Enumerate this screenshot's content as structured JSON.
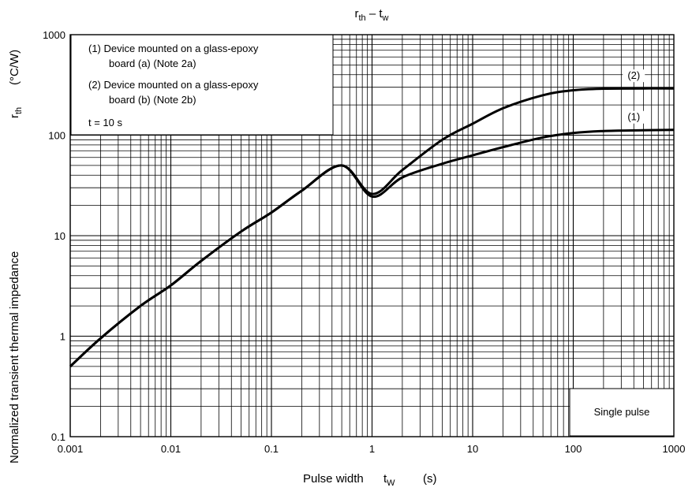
{
  "chart_data": {
    "type": "line",
    "title": {
      "base": "r",
      "base_sub": "th",
      "dash": " – ",
      "base2": "t",
      "base2_sub": "w"
    },
    "xlabel": {
      "prefix": "Pulse width",
      "symbol": "t",
      "symbol_sub": "W",
      "unit": "(s)"
    },
    "ylabel": {
      "prefix": "Normalized transient thermal impedance",
      "symbol": "r",
      "symbol_sub": "th",
      "unit": "(°C/W)"
    },
    "x_scale": "log",
    "y_scale": "log",
    "xlim": [
      0.001,
      1000
    ],
    "ylim": [
      0.1,
      1000
    ],
    "x_ticks": [
      "0.001",
      "0.01",
      "0.1",
      "1",
      "10",
      "100",
      "1000"
    ],
    "y_ticks": [
      "0.1",
      "1",
      "10",
      "100",
      "1000"
    ],
    "grid": true,
    "legend_lines": [
      "(1) Device mounted on a glass-epoxy",
      "board (a) (Note 2a)",
      "(2) Device mounted on a glass-epoxy",
      "board (b) (Note 2b)",
      "t = 10 s"
    ],
    "note": "Single pulse",
    "series": [
      {
        "name": "(1)",
        "x": [
          0.001,
          0.002,
          0.005,
          0.01,
          0.02,
          0.05,
          0.1,
          0.2,
          0.5,
          1,
          2,
          5,
          10,
          20,
          50,
          100,
          200,
          500,
          1000
        ],
        "y": [
          0.5,
          0.95,
          2.0,
          3.2,
          5.6,
          11,
          17,
          28,
          50,
          24.5,
          38,
          52,
          63,
          76,
          95,
          105,
          110,
          112,
          113
        ]
      },
      {
        "name": "(2)",
        "x": [
          0.001,
          0.002,
          0.005,
          0.01,
          0.02,
          0.05,
          0.1,
          0.2,
          0.5,
          1,
          2,
          5,
          10,
          20,
          50,
          100,
          200,
          500,
          1000
        ],
        "y": [
          0.5,
          0.95,
          2.0,
          3.2,
          5.6,
          11,
          17,
          28,
          50,
          26,
          45,
          90,
          130,
          185,
          250,
          280,
          290,
          292,
          292
        ]
      }
    ]
  }
}
